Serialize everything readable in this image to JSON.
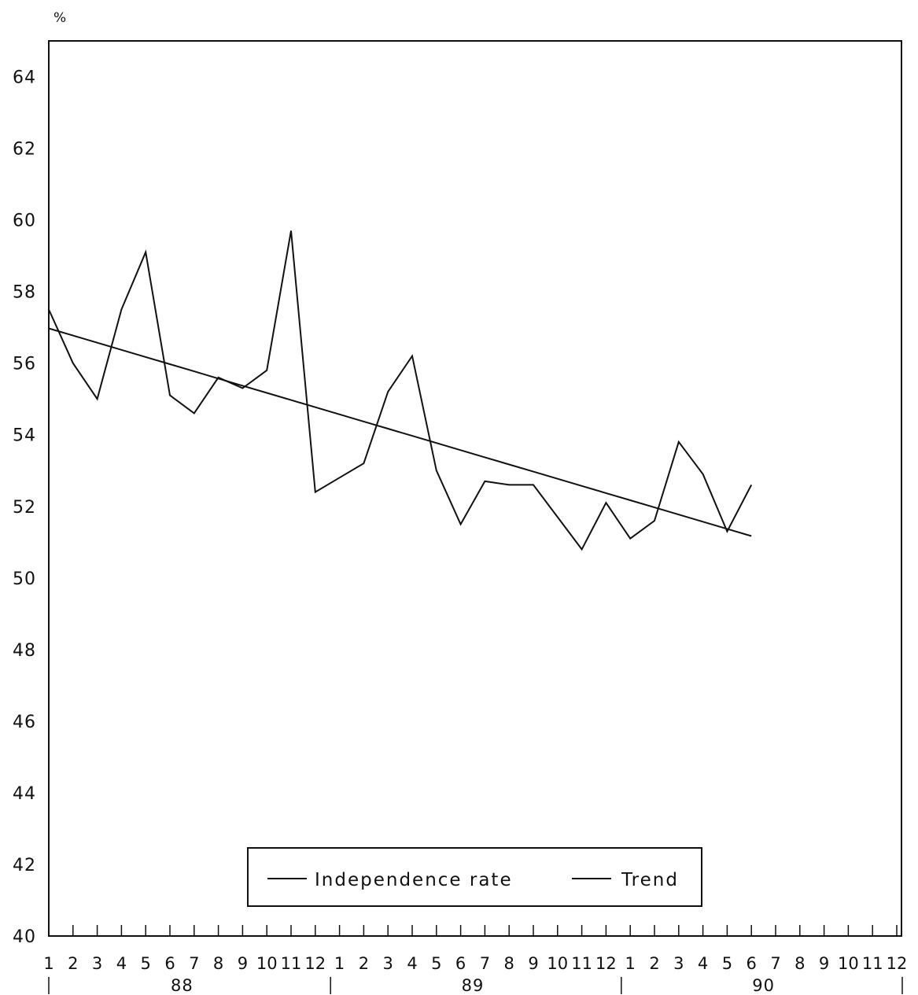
{
  "chart_data": {
    "type": "line",
    "title": "",
    "ylabel": "%",
    "xlabel": "",
    "ylim": [
      40,
      65
    ],
    "yticks": [
      "40",
      "42",
      "44",
      "46",
      "48",
      "50",
      "52",
      "54",
      "56",
      "58",
      "60",
      "62",
      "64"
    ],
    "xticks": [
      "1",
      "2",
      "3",
      "4",
      "5",
      "6",
      "7",
      "8",
      "9",
      "10",
      "11",
      "12",
      "1",
      "2",
      "3",
      "4",
      "5",
      "6",
      "7",
      "8",
      "9",
      "10",
      "11",
      "12",
      "1",
      "2",
      "3",
      "4",
      "5",
      "6",
      "7",
      "8",
      "9",
      "10",
      "11",
      "12"
    ],
    "years": [
      "88",
      "89",
      "90"
    ],
    "legend_position": "bottom-center",
    "grid": false,
    "series": [
      {
        "name": "Independence rate",
        "values": [
          57.5,
          56.0,
          55.0,
          57.5,
          59.1,
          55.1,
          54.6,
          55.6,
          55.3,
          55.8,
          59.7,
          52.4,
          52.8,
          53.2,
          55.2,
          56.2,
          53.0,
          51.5,
          52.7,
          52.6,
          52.6,
          51.7,
          50.8,
          52.1,
          51.1,
          51.6,
          53.8,
          52.9,
          51.3,
          52.6
        ]
      },
      {
        "name": "Trend",
        "values": [
          56.97,
          56.77,
          56.57,
          56.37,
          56.17,
          55.97,
          55.77,
          55.57,
          55.37,
          55.17,
          54.97,
          54.77,
          54.57,
          54.37,
          54.17,
          53.97,
          53.77,
          53.57,
          53.37,
          53.17,
          52.97,
          52.77,
          52.57,
          52.37,
          52.17,
          51.97,
          51.77,
          51.57,
          51.37,
          51.17
        ]
      }
    ]
  }
}
